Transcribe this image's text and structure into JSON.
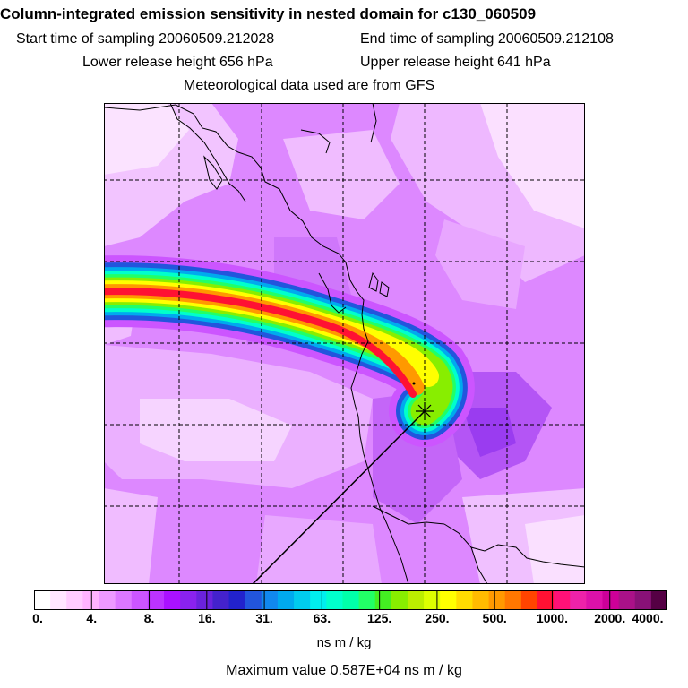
{
  "header": {
    "title": "Column-integrated emission sensitivity in nested domain for c130_060509",
    "start_label": "Start time of sampling 20060509.212028",
    "end_label": "End time of sampling 20060509.212108",
    "lower_label": "Lower release height  656 hPa",
    "upper_label": "Upper release height  641 hPa",
    "met_label": "Meteorological data used are from GFS"
  },
  "legend": {
    "ticks": [
      "0.",
      "4.",
      "8.",
      "16.",
      "31.",
      "63.",
      "125.",
      "250.",
      "500.",
      "1000.",
      "2000.",
      "4000."
    ],
    "tick_values": [
      0,
      4,
      8,
      16,
      31,
      63,
      125,
      250,
      500,
      1000,
      2000,
      4000
    ],
    "colors": [
      "#ffffff",
      "#ffe6ff",
      "#ffccff",
      "#ffb3ff",
      "#ee99ff",
      "#dd77ff",
      "#cc55ff",
      "#bb33ff",
      "#aa11ff",
      "#8a22ee",
      "#6a22dd",
      "#4422cc",
      "#2222cc",
      "#2255dd",
      "#1188ee",
      "#00aaee",
      "#00ccee",
      "#00eeee",
      "#00ffcc",
      "#00ffaa",
      "#22ff66",
      "#44ee22",
      "#88ee00",
      "#bbee00",
      "#ddff00",
      "#ffff00",
      "#ffdd00",
      "#ffbb00",
      "#ff9900",
      "#ff7700",
      "#ff4400",
      "#ff1133",
      "#ff1177",
      "#ee22aa",
      "#dd11aa",
      "#cc0099",
      "#aa1188",
      "#881177",
      "#550044"
    ],
    "units": "ns m / kg",
    "max_value_label": "Maximum value  0.587E+04 ns m / kg"
  },
  "map": {
    "background_color": "#dd88ff",
    "plume_colors": [
      "#cc55ff",
      "#2255dd",
      "#00aaee",
      "#00ffcc",
      "#22ff66",
      "#88ee00",
      "#ffff00",
      "#ff9900",
      "#ff1133"
    ],
    "receptor_marker": "star-marker"
  }
}
